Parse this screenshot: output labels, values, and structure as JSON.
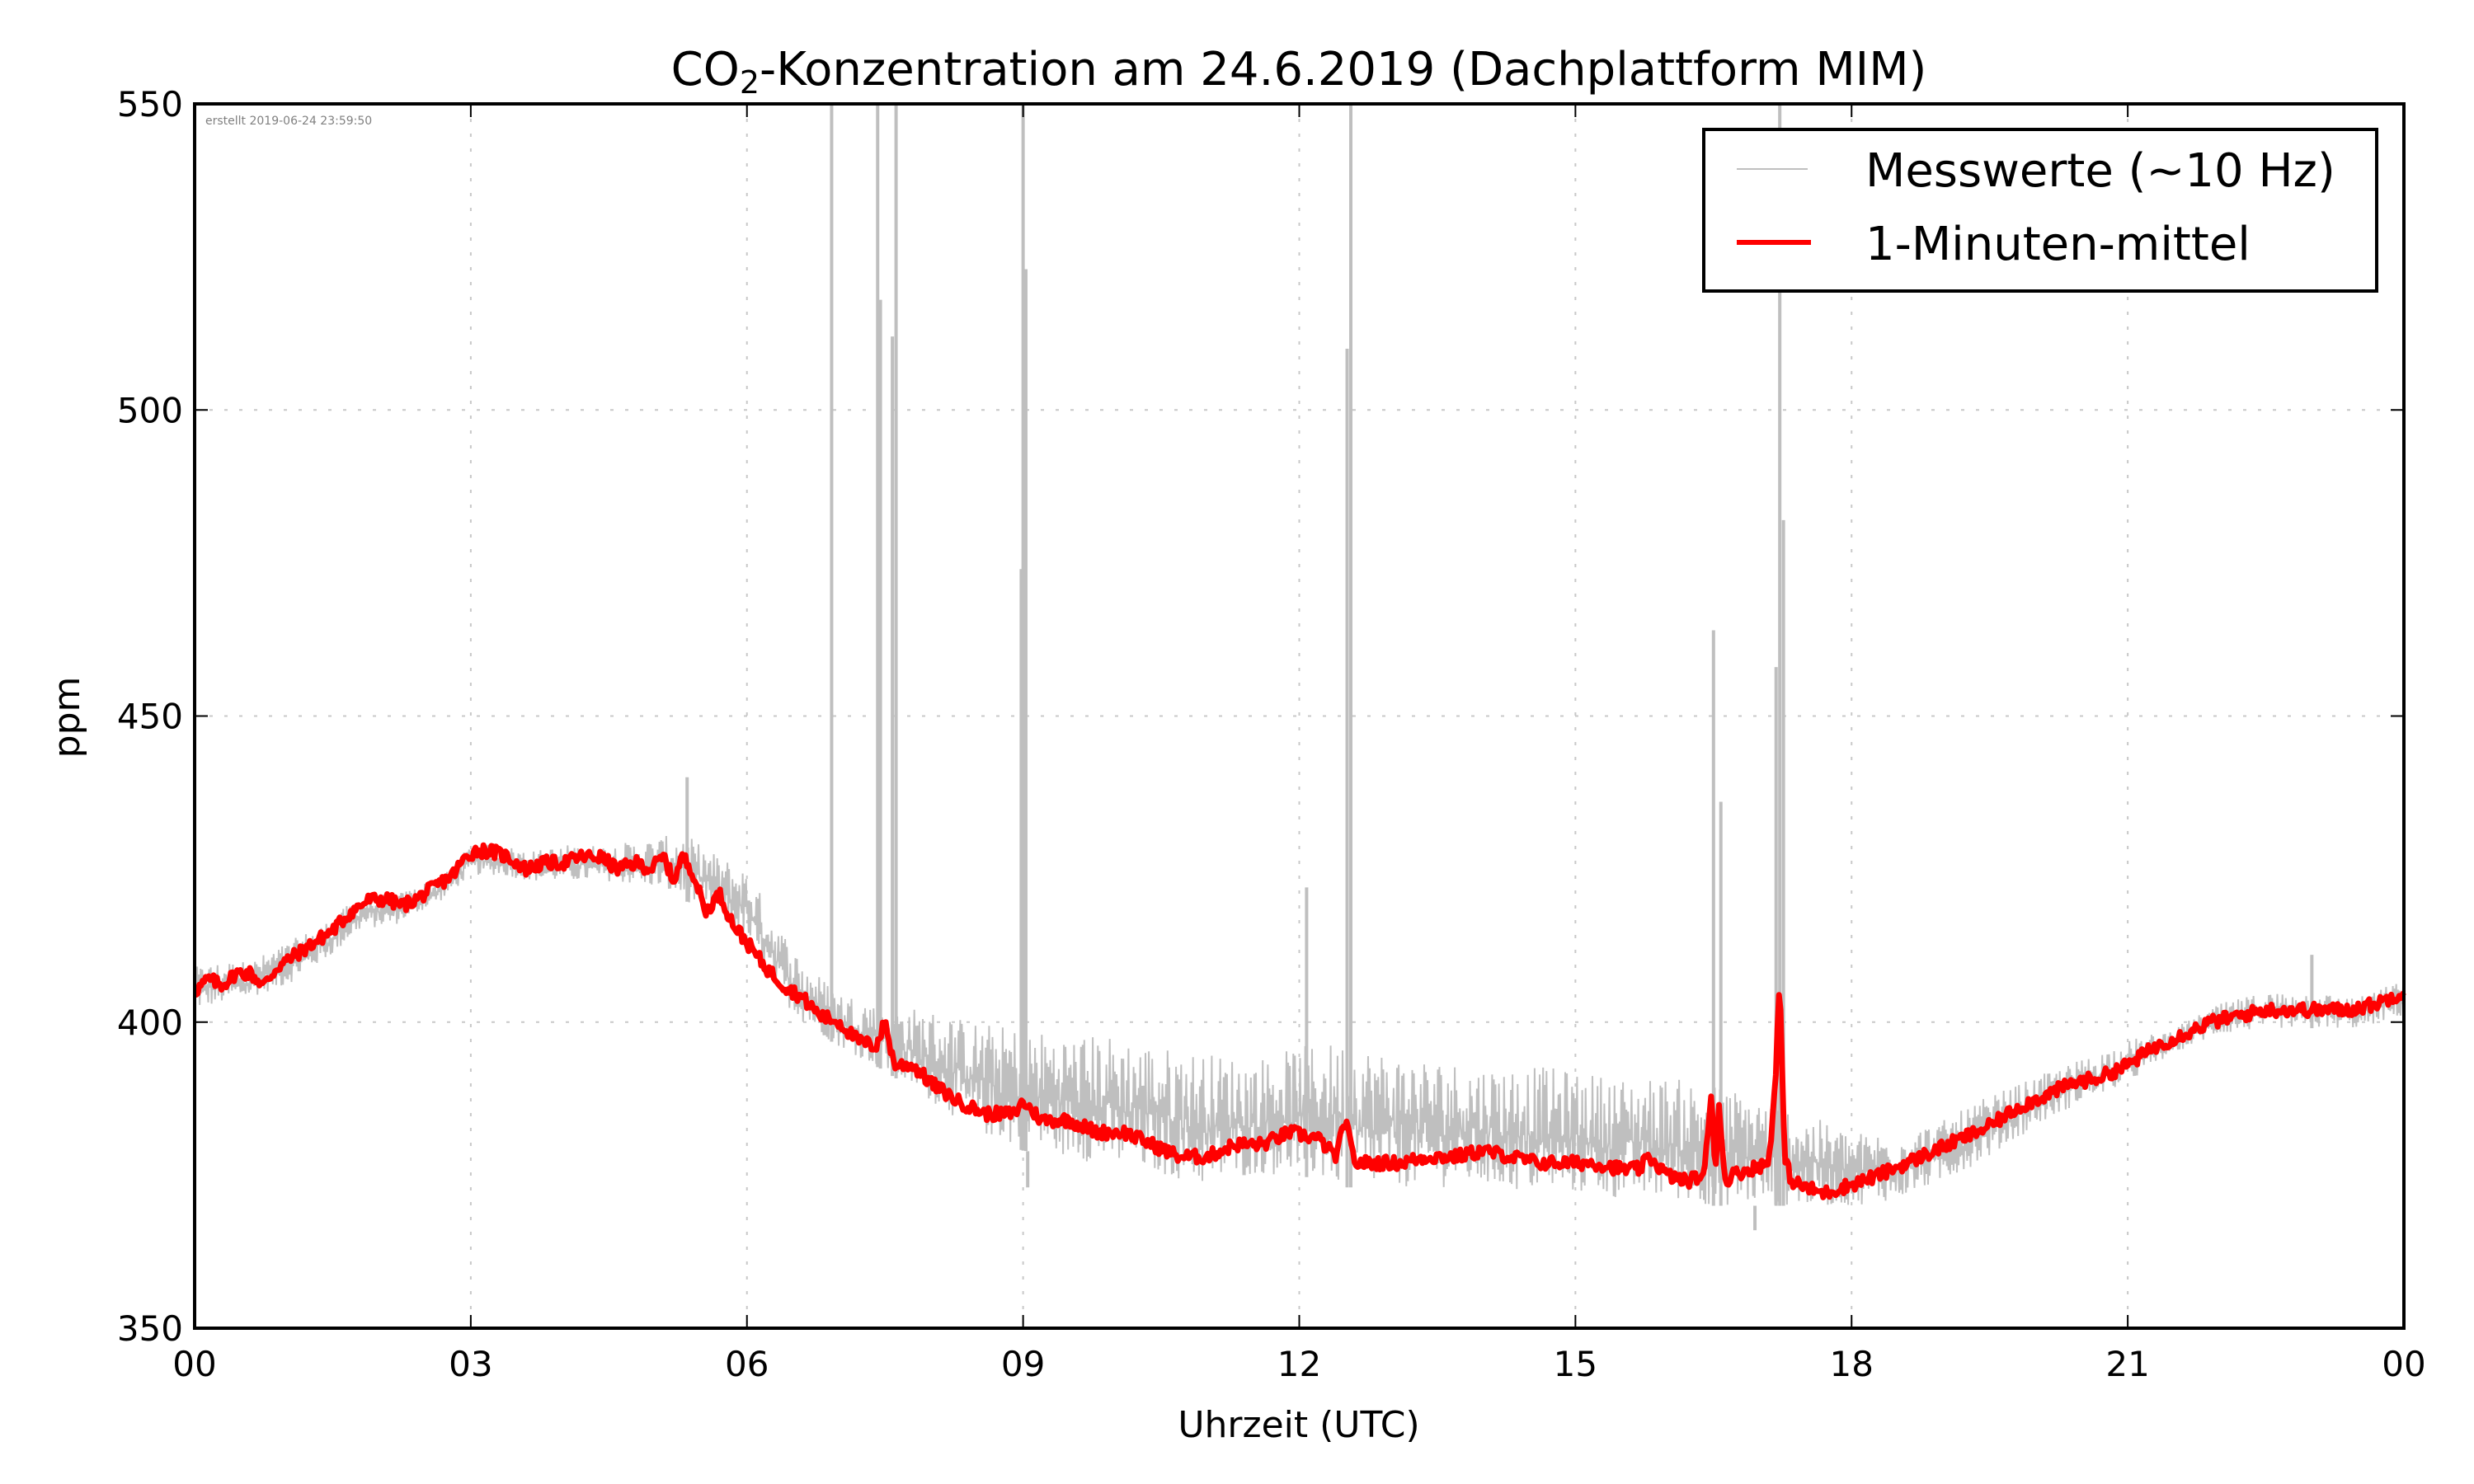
{
  "chart_data": {
    "type": "line",
    "title_prefix": "CO",
    "title_subscript": "2",
    "title_suffix": "-Konzentration am 24.6.2019 (Dachplattform MIM)",
    "title": "CO₂-Konzentration am 24.6.2019 (Dachplattform MIM)",
    "xlabel": "Uhrzeit (UTC)",
    "ylabel": "ppm",
    "xlim": [
      0,
      24
    ],
    "ylim": [
      350,
      550
    ],
    "x_unit": "hours UTC",
    "xticks": [
      0,
      3,
      6,
      9,
      12,
      15,
      18,
      21,
      24
    ],
    "xtick_labels": [
      "00",
      "03",
      "06",
      "09",
      "12",
      "15",
      "18",
      "21",
      "00"
    ],
    "yticks": [
      350,
      400,
      450,
      500,
      550
    ],
    "ytick_labels": [
      "350",
      "400",
      "450",
      "500",
      "550"
    ],
    "grid": true,
    "legend_position": "top-right",
    "annotation": "erstellt 2019-06-24 23:59:50",
    "series": [
      {
        "name": "Messwerte (~10 Hz)",
        "color": "#bfbfbf",
        "style": "thin-noisy",
        "x": [
          0,
          0.3,
          0.6,
          1.0,
          1.5,
          1.8,
          2.2,
          2.7,
          3.0,
          3.3,
          3.7,
          4.0,
          4.5,
          5.0,
          5.3,
          5.6,
          6.0,
          6.3,
          6.6,
          7.0,
          7.5,
          8.0,
          8.5,
          9.0,
          9.5,
          10.0,
          10.5,
          11.0,
          11.5,
          12.0,
          12.5,
          13.0,
          13.5,
          14.0,
          14.5,
          15.0,
          15.5,
          16.0,
          16.5,
          17.0,
          17.5,
          18.0,
          18.5,
          19.0,
          19.5,
          20.0,
          20.5,
          21.0,
          21.5,
          22.0,
          22.5,
          23.0,
          23.5,
          24.0
        ],
        "upper_envelope": [
          409,
          410,
          410,
          413,
          417,
          421,
          421,
          424,
          429,
          429,
          428,
          429,
          429,
          430,
          431,
          428,
          425,
          417,
          410,
          405,
          403,
          402,
          400,
          399,
          398,
          398,
          396,
          395,
          394,
          396,
          397,
          395,
          394,
          393,
          393,
          392,
          391,
          391,
          390,
          388,
          385,
          382,
          382,
          384,
          388,
          391,
          394,
          397,
          399,
          403,
          405,
          405,
          404,
          407
        ],
        "lower_envelope": [
          402,
          403,
          404,
          406,
          411,
          415,
          416,
          420,
          424,
          424,
          423,
          423,
          423,
          422,
          420,
          418,
          413,
          405,
          400,
          396,
          392,
          387,
          382,
          379,
          378,
          376,
          375,
          373,
          375,
          375,
          373,
          373,
          373,
          373,
          372,
          372,
          371,
          371,
          370,
          370,
          370,
          370,
          371,
          374,
          378,
          383,
          387,
          390,
          395,
          398,
          399,
          399,
          399,
          401
        ],
        "spikes": [
          {
            "x": 5.35,
            "y": 440
          },
          {
            "x": 6.92,
            "y": 550
          },
          {
            "x": 7.42,
            "y": 550
          },
          {
            "x": 7.45,
            "y": 518
          },
          {
            "x": 7.58,
            "y": 512
          },
          {
            "x": 7.62,
            "y": 550
          },
          {
            "x": 8.98,
            "y": 474
          },
          {
            "x": 9.0,
            "y": 550
          },
          {
            "x": 9.03,
            "y": 523
          },
          {
            "x": 12.08,
            "y": 422
          },
          {
            "x": 12.52,
            "y": 510
          },
          {
            "x": 12.56,
            "y": 550
          },
          {
            "x": 16.5,
            "y": 464
          },
          {
            "x": 16.58,
            "y": 436
          },
          {
            "x": 17.18,
            "y": 458
          },
          {
            "x": 17.22,
            "y": 550
          },
          {
            "x": 17.26,
            "y": 482
          },
          {
            "x": 16.95,
            "y": 366
          },
          {
            "x": 23.0,
            "y": 411
          },
          {
            "x": 9.05,
            "y": 373
          }
        ]
      },
      {
        "name": "1-Minuten-mittel",
        "color": "#ff0000",
        "style": "thick",
        "x": [
          0,
          0.15,
          0.3,
          0.45,
          0.6,
          0.75,
          0.9,
          1.1,
          1.3,
          1.5,
          1.7,
          1.9,
          2.1,
          2.25,
          2.4,
          2.6,
          2.8,
          2.95,
          3.05,
          3.2,
          3.4,
          3.6,
          3.8,
          4.0,
          4.2,
          4.4,
          4.6,
          4.8,
          4.95,
          5.1,
          5.2,
          5.3,
          5.4,
          5.55,
          5.7,
          5.85,
          6.0,
          6.2,
          6.4,
          6.6,
          6.8,
          7.0,
          7.2,
          7.4,
          7.5,
          7.6,
          7.8,
          8.0,
          8.3,
          8.6,
          8.9,
          9.0,
          9.2,
          9.5,
          9.8,
          10.1,
          10.4,
          10.7,
          11.0,
          11.3,
          11.6,
          11.9,
          12.2,
          12.4,
          12.5,
          12.6,
          12.8,
          13.1,
          13.4,
          13.7,
          14.0,
          14.3,
          14.6,
          14.9,
          15.2,
          15.5,
          15.7,
          15.8,
          16.0,
          16.2,
          16.4,
          16.48,
          16.52,
          16.56,
          16.62,
          16.7,
          16.9,
          17.1,
          17.17,
          17.22,
          17.27,
          17.35,
          17.5,
          17.7,
          17.9,
          18.1,
          18.3,
          18.6,
          18.9,
          19.2,
          19.5,
          19.8,
          20.1,
          20.4,
          20.7,
          21.0,
          21.3,
          21.6,
          21.9,
          22.2,
          22.5,
          22.8,
          23.1,
          23.4,
          23.7,
          24.0
        ],
        "values": [
          405,
          407,
          406,
          408,
          408,
          406,
          409,
          411,
          413,
          415,
          418,
          420,
          420,
          419,
          420,
          422,
          424,
          427,
          428,
          428,
          427,
          425,
          426,
          426,
          427,
          427,
          425,
          426,
          425,
          427,
          423,
          427,
          425,
          418,
          421,
          416,
          413,
          409,
          406,
          404,
          401,
          400,
          397,
          396,
          400,
          393,
          393,
          390,
          387,
          385,
          385,
          387,
          384,
          384,
          382,
          382,
          380,
          378,
          378,
          380,
          380,
          382,
          381,
          378,
          384,
          377,
          377,
          377,
          378,
          378,
          379,
          378,
          377,
          377,
          377,
          376,
          376,
          378,
          375,
          374,
          375,
          389,
          375,
          387,
          374,
          375,
          376,
          377,
          390,
          407,
          378,
          374,
          373,
          372,
          373,
          374,
          375,
          377,
          379,
          381,
          383,
          386,
          388,
          390,
          391,
          393,
          396,
          398,
          400,
          401,
          402,
          402,
          402,
          402,
          403,
          405
        ]
      }
    ]
  }
}
